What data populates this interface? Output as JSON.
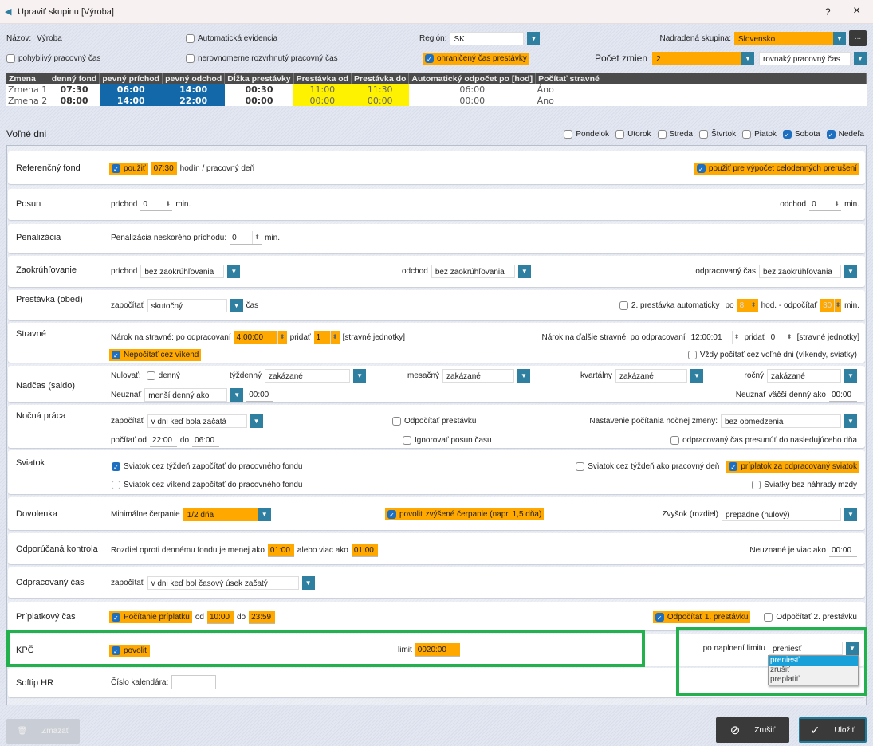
{
  "window": {
    "title": "Upraviť skupinu [Výroba]",
    "help": "?",
    "close": "×"
  },
  "header": {
    "name_label": "Názov:",
    "name_value": "Výroba",
    "auto_evidence": {
      "label": "Automatická evidencia",
      "checked": false
    },
    "region_label": "Región:",
    "region_value": "SK",
    "parent_label": "Nadradená skupina:",
    "parent_value": "Slovensko",
    "more": "...",
    "flexible": {
      "label": "pohyblivý pracovný čas",
      "checked": false
    },
    "uneven": {
      "label": "nerovnomerne rozvrhnutý pracovný čas",
      "checked": false
    },
    "limited_break": {
      "label": "ohraničený čas prestávky",
      "checked": true
    },
    "shifts_label": "Počet zmien",
    "shifts_value": "2",
    "worktime_value": "rovnaký pracovný čas"
  },
  "shifts_table": {
    "columns": [
      "Zmena",
      "denný fond",
      "pevný príchod",
      "pevný odchod",
      "Dĺžka prestávky",
      "Prestávka od",
      "Prestávka do",
      "Automatický odpočet po [hod]",
      "Počítať stravné"
    ],
    "rows": [
      [
        "Zmena 1",
        "07:30",
        "06:00",
        "14:00",
        "00:30",
        "11:00",
        "11:30",
        "06:00",
        "Áno"
      ],
      [
        "Zmena 2",
        "08:00",
        "14:00",
        "22:00",
        "00:00",
        "00:00",
        "00:00",
        "00:00",
        "Áno"
      ]
    ]
  },
  "free_days": {
    "label": "Voľné dni",
    "days": [
      {
        "label": "Pondelok",
        "checked": false
      },
      {
        "label": "Utorok",
        "checked": false
      },
      {
        "label": "Streda",
        "checked": false
      },
      {
        "label": "Štvrtok",
        "checked": false
      },
      {
        "label": "Piatok",
        "checked": false
      },
      {
        "label": "Sobota",
        "checked": true
      },
      {
        "label": "Nedeľa",
        "checked": true
      }
    ]
  },
  "s": {
    "ref": {
      "title": "Referenčný fond",
      "use": "použiť",
      "hours": "07:30",
      "unit": "hodín / pracovný deň",
      "use_full": "použiť pre výpočet celodenných prerušení"
    },
    "shift": {
      "title": "Posun",
      "arrival": "príchod",
      "arrival_v": "0",
      "min": "min.",
      "departure": "odchod",
      "departure_v": "0"
    },
    "pen": {
      "title": "Penalizácia",
      "label": "Penalizácia neskorého príchodu:",
      "v": "0",
      "min": "min."
    },
    "round": {
      "title": "Zaokrúhľovanie",
      "arrival": "príchod",
      "arrival_v": "bez zaokrúhľovania",
      "departure": "odchod",
      "departure_v": "bez zaokrúhľovania",
      "worked": "odpracovaný čas",
      "worked_v": "bez zaokrúhľovania"
    },
    "brk": {
      "title": "Prestávka (obed)",
      "count": "započítať",
      "count_v": "skutočný",
      "time": "čas",
      "second": "2. prestávka automaticky",
      "after": "po",
      "after_v": "8",
      "hod": "hod. - odpočítať",
      "sub_v": "30",
      "min": "min."
    },
    "meal": {
      "title": "Stravné",
      "claim": "Nárok na stravné: po odpracovaní",
      "claim_v": "4:00:00",
      "add": "pridať",
      "add_v": "1",
      "units": "[stravné jednotky]",
      "no_weekend": "Nepočítať cez víkend",
      "claim2": "Nárok na ďalšie stravné: po odpracovaní",
      "claim2_v": "12:00:01",
      "add2_v": "0",
      "always": "Vždy počítať cez voľné dni (víkendy, sviatky)"
    },
    "ot": {
      "title": "Nadčas (saldo)",
      "reset": "Nulovať:",
      "daily": "denný",
      "weekly": "týždenný",
      "weekly_v": "zakázané",
      "monthly": "mesačný",
      "monthly_v": "zakázané",
      "quarterly": "kvartálny",
      "quarterly_v": "zakázané",
      "yearly": "ročný",
      "yearly_v": "zakázané",
      "ignore": "Neuznať",
      "ignore_v": "menší denný ako",
      "ignore_t": "00:00",
      "ignore_big": "Neuznať väčší denný ako",
      "ignore_big_t": "00:00"
    },
    "night": {
      "title": "Nočná práca",
      "count": "započítať",
      "count_v": "v dni keď bola začatá",
      "sub_break": "Odpočítať prestávku",
      "setting": "Nastavenie počítania nočnej zmeny:",
      "setting_v": "bez obmedzenia",
      "from": "počítať od",
      "from_v": "22:00",
      "to": "do",
      "to_v": "06:00",
      "ignore_dst": "Ignorovať posun času",
      "move": "odpracovaný čas presunúť do nasledujúceho dňa"
    },
    "hol": {
      "title": "Sviatok",
      "week_fund": "Sviatok cez týždeň započítať do pracovného fondu",
      "weekend_fund": "Sviatok cez víkend započítať do pracovného fondu",
      "week_work": "Sviatok cez týždeň ako pracovný deň",
      "bonus": "príplatok za odpracovaný sviatok",
      "no_comp": "Sviatky bez náhrady mzdy"
    },
    "vac": {
      "title": "Dovolenka",
      "min": "Minimálne čerpanie",
      "min_v": "1/2 dňa",
      "allow": "povoliť zvýšené čerpanie (napr. 1,5 dňa)",
      "rest": "Zvyšok (rozdiel)",
      "rest_v": "prepadne (nulový)"
    },
    "chk": {
      "title": "Odporúčaná kontrola",
      "diff": "Rozdiel oproti dennému fondu je menej ako",
      "less_v": "01:00",
      "or_more": "alebo viac ako",
      "more_v": "01:00",
      "unrec": "Neuznané je viac ako",
      "unrec_v": "00:00"
    },
    "worked": {
      "title": "Odpracovaný čas",
      "count": "započítať",
      "count_v": "v dni keď bol časový úsek začatý"
    },
    "sup": {
      "title": "Príplatkový čas",
      "calc": "Počítanie príplatku",
      "from": "od",
      "from_v": "10:00",
      "to": "do",
      "to_v": "23:59",
      "sub1": "Odpočítať 1. prestávku",
      "sub2": "Odpočítať 2. prestávku"
    },
    "kpc": {
      "title": "KPČ",
      "allow": "povoliť",
      "limit": "limit",
      "limit_v": "0020:00",
      "after": "po naplnení limitu",
      "after_v": "preniesť",
      "options": [
        "preniesť",
        "zrušiť",
        "preplatiť"
      ]
    },
    "softip": {
      "title": "Softip HR",
      "cal": "Číslo kalendára:",
      "cal_v": ""
    }
  },
  "footer": {
    "delete": "Zmazať",
    "cancel": "Zrušiť",
    "save": "Uložiť"
  },
  "colors": {
    "accent_orange": "#ffa800",
    "header_blue": "#1268a8",
    "highlight_yellow": "#fff200",
    "annotation_green": "#22b14c",
    "dropdown_blue": "#2e7fa0"
  }
}
